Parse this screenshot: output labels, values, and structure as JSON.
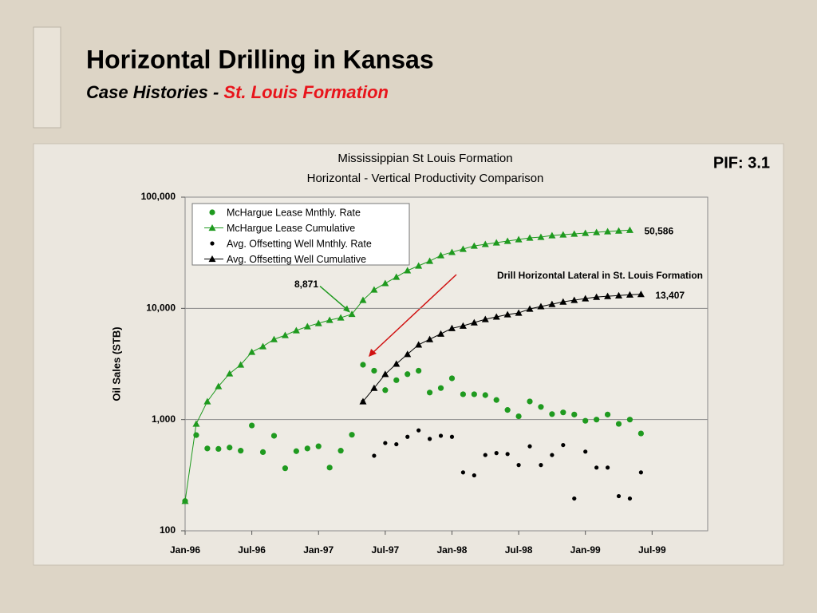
{
  "slide": {
    "title": "Horizontal Drilling in Kansas",
    "subtitle_prefix": "Case Histories - ",
    "subtitle_highlight": "St. Louis Formation"
  },
  "chart_data": {
    "type": "line",
    "title": "Mississippian St Louis Formation",
    "subtitle": "Horizontal - Vertical Productivity Comparison",
    "y_label": "Oil Sales (STB)",
    "annotations": [
      "Drill Horizontal Lateral in St. Louis Formation",
      "PIF: 3.1"
    ],
    "log_y": true,
    "grid": true,
    "legend": "upper left",
    "ylim": [
      100,
      100000
    ],
    "yticks": [
      100,
      {
        "value": 1000,
        "label": "1,000"
      },
      {
        "value": 10000,
        "label": "10,000"
      },
      {
        "value": 100000,
        "label": "100,000"
      }
    ],
    "xlim": [
      "1996-01",
      "1999-12"
    ],
    "xticks": [
      {
        "value": "1996-01",
        "label": "Jan-96"
      },
      {
        "value": "1996-07",
        "label": "Jul-96"
      },
      {
        "value": "1997-01",
        "label": "Jan-97"
      },
      {
        "value": "1997-07",
        "label": "Jul-97"
      },
      {
        "value": "1998-01",
        "label": "Jan-98"
      },
      {
        "value": "1998-07",
        "label": "Jul-98"
      },
      {
        "value": "1999-01",
        "label": "Jan-99"
      },
      {
        "value": "1999-07",
        "label": "Jul-99"
      }
    ],
    "x": [
      "1996-01",
      "1996-02",
      "1996-03",
      "1996-04",
      "1996-05",
      "1996-06",
      "1996-07",
      "1996-08",
      "1996-09",
      "1996-10",
      "1996-11",
      "1996-12",
      "1997-01",
      "1997-02",
      "1997-03",
      "1997-04",
      "1997-05",
      "1997-06",
      "1997-07",
      "1997-08",
      "1997-09",
      "1997-10",
      "1997-11",
      "1997-12",
      "1998-01",
      "1998-02",
      "1998-03",
      "1998-04",
      "1998-05",
      "1998-06",
      "1998-07",
      "1998-08",
      "1998-09",
      "1998-10",
      "1998-11",
      "1998-12",
      "1999-01",
      "1999-02",
      "1999-03",
      "1999-04",
      "1999-05",
      "1999-06"
    ],
    "series": [
      {
        "name": "McHargue Lease Mnthly. Rate",
        "color": "#1f9a1f",
        "marker": "circle",
        "line": false,
        "values": [
          185,
          725,
          550,
          545,
          560,
          525,
          885,
          510,
          715,
          365,
          520,
          550,
          575,
          370,
          525,
          730,
          3110,
          2750,
          1840,
          2260,
          2560,
          2750,
          1750,
          1920,
          2350,
          1690,
          1690,
          1660,
          1500,
          1220,
          1070,
          1455,
          1300,
          1120,
          1160,
          1110,
          975,
          1000,
          1110,
          915,
          1000,
          750
        ]
      },
      {
        "name": "McHargue Lease Cumulative",
        "color": "#1f9a1f",
        "marker": "triangle",
        "line": true,
        "values": [
          185,
          915,
          1455,
          1990,
          2590,
          3110,
          4050,
          4550,
          5270,
          5730,
          6330,
          6870,
          7350,
          7850,
          8240,
          8871,
          11850,
          14700,
          16800,
          19150,
          21900,
          24150,
          26650,
          29900,
          32000,
          34150,
          36450,
          37750,
          39000,
          40300,
          41650,
          43050,
          43750,
          45250,
          46000,
          46750,
          47550,
          48300,
          49100,
          49800,
          50586,
          null
        ],
        "value_labels": [
          null,
          null,
          null,
          null,
          null,
          null,
          null,
          null,
          null,
          null,
          null,
          null,
          null,
          null,
          null,
          "8,871",
          null,
          null,
          null,
          null,
          null,
          null,
          null,
          null,
          null,
          null,
          null,
          null,
          null,
          null,
          null,
          null,
          null,
          null,
          null,
          null,
          null,
          null,
          null,
          null,
          "50,586",
          null
        ]
      },
      {
        "name": "Avg. Offsetting Well Mnthly. Rate",
        "color": "#000000",
        "marker": "circle",
        "line": false,
        "values": [
          null,
          null,
          null,
          null,
          null,
          null,
          null,
          null,
          null,
          null,
          null,
          null,
          null,
          null,
          null,
          null,
          1455,
          473,
          615,
          600,
          700,
          800,
          670,
          715,
          700,
          335,
          315,
          480,
          500,
          490,
          390,
          575,
          390,
          480,
          590,
          195,
          515,
          370,
          370,
          205,
          195,
          335
        ]
      },
      {
        "name": "Avg. Offsetting Well Cumulative",
        "color": "#000000",
        "marker": "triangle",
        "line": true,
        "values": [
          null,
          null,
          null,
          null,
          null,
          null,
          null,
          null,
          null,
          null,
          null,
          null,
          null,
          null,
          null,
          null,
          1455,
          1920,
          2560,
          3170,
          3870,
          4710,
          5270,
          5900,
          6620,
          6960,
          7450,
          7980,
          8390,
          8800,
          9100,
          9890,
          10400,
          10900,
          11450,
          11850,
          12250,
          12650,
          12850,
          13050,
          13250,
          13407
        ],
        "value_labels": [
          null,
          null,
          null,
          null,
          null,
          null,
          null,
          null,
          null,
          null,
          null,
          null,
          null,
          null,
          null,
          null,
          null,
          null,
          null,
          null,
          null,
          null,
          null,
          null,
          null,
          null,
          null,
          null,
          null,
          null,
          null,
          null,
          null,
          null,
          null,
          null,
          null,
          null,
          null,
          null,
          null,
          "13,407"
        ]
      }
    ]
  }
}
